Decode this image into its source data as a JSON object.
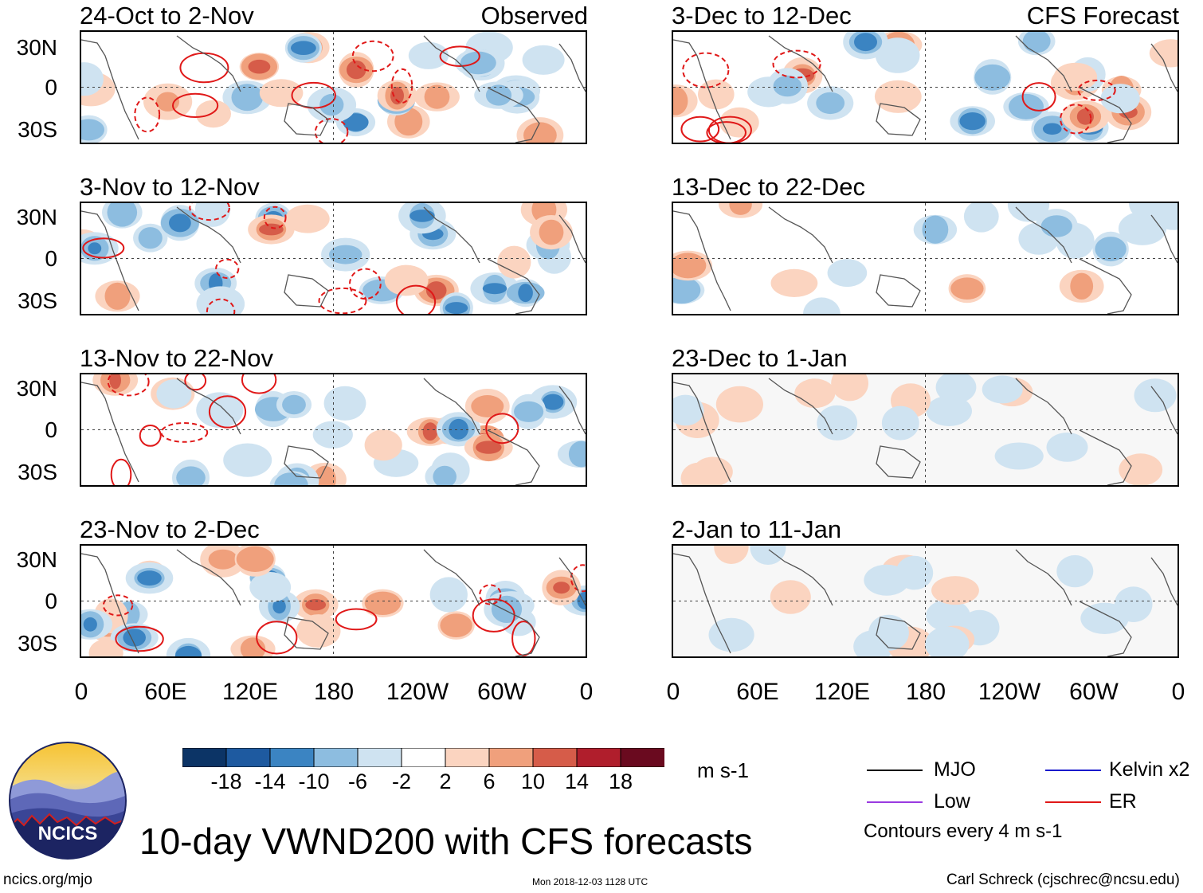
{
  "header": {
    "left_column_label": "Observed",
    "right_column_label": "CFS Forecast"
  },
  "panels_observed": [
    {
      "period": "24-Oct to 2-Nov"
    },
    {
      "period": "3-Nov to 12-Nov"
    },
    {
      "period": "13-Nov to 22-Nov"
    },
    {
      "period": "23-Nov to 2-Dec"
    }
  ],
  "panels_forecast": [
    {
      "period": "3-Dec to 12-Dec"
    },
    {
      "period": "13-Dec to 22-Dec"
    },
    {
      "period": "23-Dec to 1-Jan"
    },
    {
      "period": "2-Jan to 11-Jan"
    }
  ],
  "latitude_labels": [
    "30N",
    "0",
    "30S"
  ],
  "longitude_labels": [
    "0",
    "60E",
    "120E",
    "180",
    "120W",
    "60W",
    "0"
  ],
  "colorbar": {
    "unit": "m s-1",
    "ticks": [
      "-18",
      "-14",
      "-10",
      "-6",
      "-2",
      "2",
      "6",
      "10",
      "14",
      "18"
    ],
    "colors": [
      "#0c3466",
      "#1e5aa0",
      "#3b84c2",
      "#8dbde0",
      "#cfe3f1",
      "#ffffff",
      "#fbd4c0",
      "#f0a07c",
      "#d65c49",
      "#b01e2c",
      "#6a0a1f"
    ]
  },
  "legend": {
    "items": [
      {
        "label": "MJO",
        "color": "#000000"
      },
      {
        "label": "Kelvin x2",
        "color": "#1a1acc"
      },
      {
        "label": "Low",
        "color": "#9a3ae0"
      },
      {
        "label": "ER",
        "color": "#e01818"
      }
    ],
    "contour_note": "Contours every 4 m s-1"
  },
  "title": "10-day VWND200 with CFS forecasts",
  "logo_text": "NCICS",
  "footer": {
    "url": "ncics.org/mjo",
    "timestamp": "Mon 2018-12-03 1128 UTC",
    "author": "Carl Schreck (cjschrec@ncsu.edu)"
  }
}
